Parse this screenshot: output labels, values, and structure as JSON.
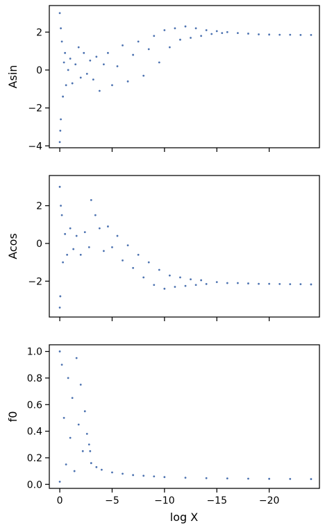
{
  "figure": {
    "xlabel": "log X",
    "color": "#4c72b0"
  },
  "chart_data": [
    {
      "type": "scatter",
      "ylabel": "Asin",
      "xlim": [
        1.0,
        -24.8
      ],
      "ylim": [
        -4.1,
        3.4
      ],
      "xticks": [
        0,
        -5,
        -10,
        -15,
        -20
      ],
      "xtick_labels": [],
      "yticks": [
        -4,
        -2,
        0,
        2
      ],
      "ytick_labels": [
        "−4",
        "−2",
        "0",
        "2"
      ],
      "points": [
        [
          0.0,
          3.0
        ],
        [
          0.0,
          -3.8
        ],
        [
          -0.05,
          -3.2
        ],
        [
          -0.1,
          -2.6
        ],
        [
          -0.1,
          2.2
        ],
        [
          -0.2,
          1.5
        ],
        [
          -0.3,
          -1.4
        ],
        [
          -0.4,
          0.4
        ],
        [
          -0.5,
          0.9
        ],
        [
          -0.6,
          -0.8
        ],
        [
          -0.8,
          0.0
        ],
        [
          -1.0,
          0.6
        ],
        [
          -1.2,
          -0.7
        ],
        [
          -1.5,
          0.3
        ],
        [
          -1.8,
          1.2
        ],
        [
          -2.0,
          -0.4
        ],
        [
          -2.3,
          0.9
        ],
        [
          -2.6,
          -0.2
        ],
        [
          -2.9,
          0.5
        ],
        [
          -3.2,
          -0.5
        ],
        [
          -3.5,
          0.7
        ],
        [
          -3.8,
          -1.1
        ],
        [
          -4.2,
          0.3
        ],
        [
          -4.6,
          0.9
        ],
        [
          -5.0,
          -0.8
        ],
        [
          -5.5,
          0.2
        ],
        [
          -6.0,
          1.3
        ],
        [
          -6.5,
          -0.6
        ],
        [
          -7.0,
          0.8
        ],
        [
          -7.5,
          1.5
        ],
        [
          -8.0,
          -0.3
        ],
        [
          -8.5,
          1.1
        ],
        [
          -9.0,
          1.8
        ],
        [
          -9.5,
          0.4
        ],
        [
          -10.0,
          2.1
        ],
        [
          -10.5,
          1.2
        ],
        [
          -11.0,
          2.2
        ],
        [
          -11.5,
          1.6
        ],
        [
          -12.0,
          2.3
        ],
        [
          -12.5,
          1.7
        ],
        [
          -13.0,
          2.2
        ],
        [
          -13.5,
          1.8
        ],
        [
          -14.0,
          2.1
        ],
        [
          -14.5,
          1.9
        ],
        [
          -15.0,
          2.05
        ],
        [
          -15.5,
          1.95
        ],
        [
          -16.0,
          2.0
        ],
        [
          -17.0,
          1.95
        ],
        [
          -18.0,
          1.92
        ],
        [
          -19.0,
          1.88
        ],
        [
          -20.0,
          1.87
        ],
        [
          -21.0,
          1.86
        ],
        [
          -22.0,
          1.86
        ],
        [
          -23.0,
          1.85
        ],
        [
          -24.0,
          1.85
        ]
      ]
    },
    {
      "type": "scatter",
      "ylabel": "Acos",
      "xlim": [
        1.0,
        -24.8
      ],
      "ylim": [
        -3.9,
        3.6
      ],
      "xticks": [
        0,
        -5,
        -10,
        -15,
        -20
      ],
      "xtick_labels": [],
      "yticks": [
        -2,
        0,
        2
      ],
      "ytick_labels": [
        "−2",
        "0",
        "2"
      ],
      "points": [
        [
          0.0,
          3.0
        ],
        [
          0.0,
          -3.4
        ],
        [
          -0.05,
          -2.8
        ],
        [
          -0.1,
          2.0
        ],
        [
          -0.2,
          1.5
        ],
        [
          -0.3,
          -1.0
        ],
        [
          -0.5,
          0.5
        ],
        [
          -0.7,
          -0.6
        ],
        [
          -1.0,
          0.8
        ],
        [
          -1.3,
          -0.3
        ],
        [
          -1.6,
          0.4
        ],
        [
          -2.0,
          -0.6
        ],
        [
          -2.4,
          0.6
        ],
        [
          -2.8,
          -0.2
        ],
        [
          -3.0,
          2.3
        ],
        [
          -3.4,
          1.5
        ],
        [
          -3.8,
          0.8
        ],
        [
          -4.2,
          -0.4
        ],
        [
          -4.6,
          0.9
        ],
        [
          -5.0,
          -0.2
        ],
        [
          -5.5,
          0.4
        ],
        [
          -6.0,
          -0.9
        ],
        [
          -6.5,
          -0.1
        ],
        [
          -7.0,
          -1.3
        ],
        [
          -7.5,
          -0.6
        ],
        [
          -8.0,
          -1.8
        ],
        [
          -8.5,
          -1.0
        ],
        [
          -9.0,
          -2.2
        ],
        [
          -9.5,
          -1.4
        ],
        [
          -10.0,
          -2.4
        ],
        [
          -10.5,
          -1.7
        ],
        [
          -11.0,
          -2.3
        ],
        [
          -11.5,
          -1.8
        ],
        [
          -12.0,
          -2.25
        ],
        [
          -12.5,
          -1.9
        ],
        [
          -13.0,
          -2.2
        ],
        [
          -13.5,
          -1.95
        ],
        [
          -14.0,
          -2.15
        ],
        [
          -15.0,
          -2.05
        ],
        [
          -16.0,
          -2.1
        ],
        [
          -17.0,
          -2.1
        ],
        [
          -18.0,
          -2.12
        ],
        [
          -19.0,
          -2.14
        ],
        [
          -20.0,
          -2.14
        ],
        [
          -21.0,
          -2.15
        ],
        [
          -22.0,
          -2.16
        ],
        [
          -23.0,
          -2.16
        ],
        [
          -24.0,
          -2.17
        ]
      ]
    },
    {
      "type": "scatter",
      "ylabel": "f0",
      "xlim": [
        1.0,
        -24.8
      ],
      "ylim": [
        -0.03,
        1.05
      ],
      "xticks": [
        0,
        -5,
        -10,
        -15,
        -20
      ],
      "xtick_labels": [
        "0",
        "−5",
        "−10",
        "−15",
        "−20"
      ],
      "yticks": [
        0.0,
        0.2,
        0.4,
        0.6,
        0.8,
        1.0
      ],
      "ytick_labels": [
        "0.0",
        "0.2",
        "0.4",
        "0.6",
        "0.8",
        "1.0"
      ],
      "points": [
        [
          0.0,
          1.0
        ],
        [
          0.0,
          0.02
        ],
        [
          -0.2,
          0.9
        ],
        [
          -0.4,
          0.5
        ],
        [
          -0.6,
          0.15
        ],
        [
          -0.8,
          0.8
        ],
        [
          -1.0,
          0.35
        ],
        [
          -1.2,
          0.65
        ],
        [
          -1.4,
          0.1
        ],
        [
          -1.6,
          0.95
        ],
        [
          -1.8,
          0.45
        ],
        [
          -2.0,
          0.75
        ],
        [
          -2.2,
          0.25
        ],
        [
          -2.4,
          0.55
        ],
        [
          -2.6,
          0.38
        ],
        [
          -2.8,
          0.3
        ],
        [
          -2.9,
          0.25
        ],
        [
          -3.0,
          0.16
        ],
        [
          -3.5,
          0.13
        ],
        [
          -4.0,
          0.11
        ],
        [
          -5.0,
          0.09
        ],
        [
          -6.0,
          0.08
        ],
        [
          -7.0,
          0.07
        ],
        [
          -8.0,
          0.065
        ],
        [
          -9.0,
          0.06
        ],
        [
          -10.0,
          0.055
        ],
        [
          -12.0,
          0.05
        ],
        [
          -14.0,
          0.047
        ],
        [
          -16.0,
          0.045
        ],
        [
          -18.0,
          0.043
        ],
        [
          -20.0,
          0.042
        ],
        [
          -22.0,
          0.041
        ],
        [
          -24.0,
          0.04
        ]
      ]
    }
  ]
}
